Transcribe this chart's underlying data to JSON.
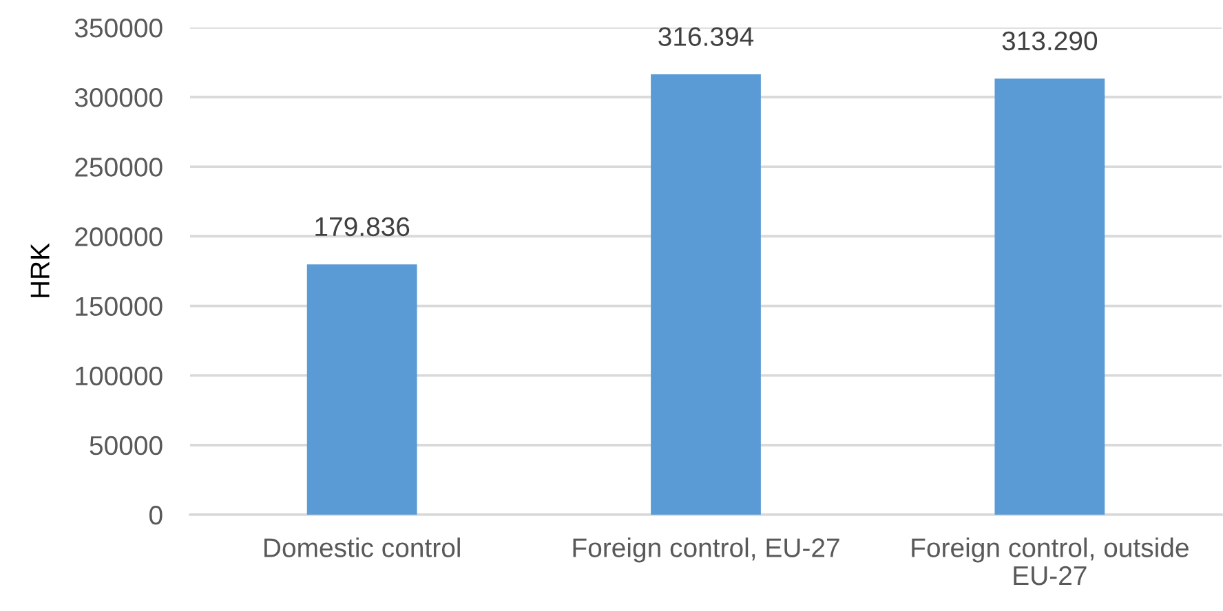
{
  "chart_data": {
    "type": "bar",
    "ylabel": "HRK",
    "categories": [
      "Domestic control",
      "Foreign control, EU-27",
      "Foreign control, outside EU-27"
    ],
    "values": [
      179836,
      316394,
      313290
    ],
    "value_labels": [
      "179.836",
      "316.394",
      "313.290"
    ],
    "color": "#5b9bd5",
    "ylim": [
      0,
      350000
    ],
    "yticks": [
      0,
      50000,
      100000,
      150000,
      200000,
      250000,
      300000,
      350000
    ],
    "grid": "y"
  }
}
